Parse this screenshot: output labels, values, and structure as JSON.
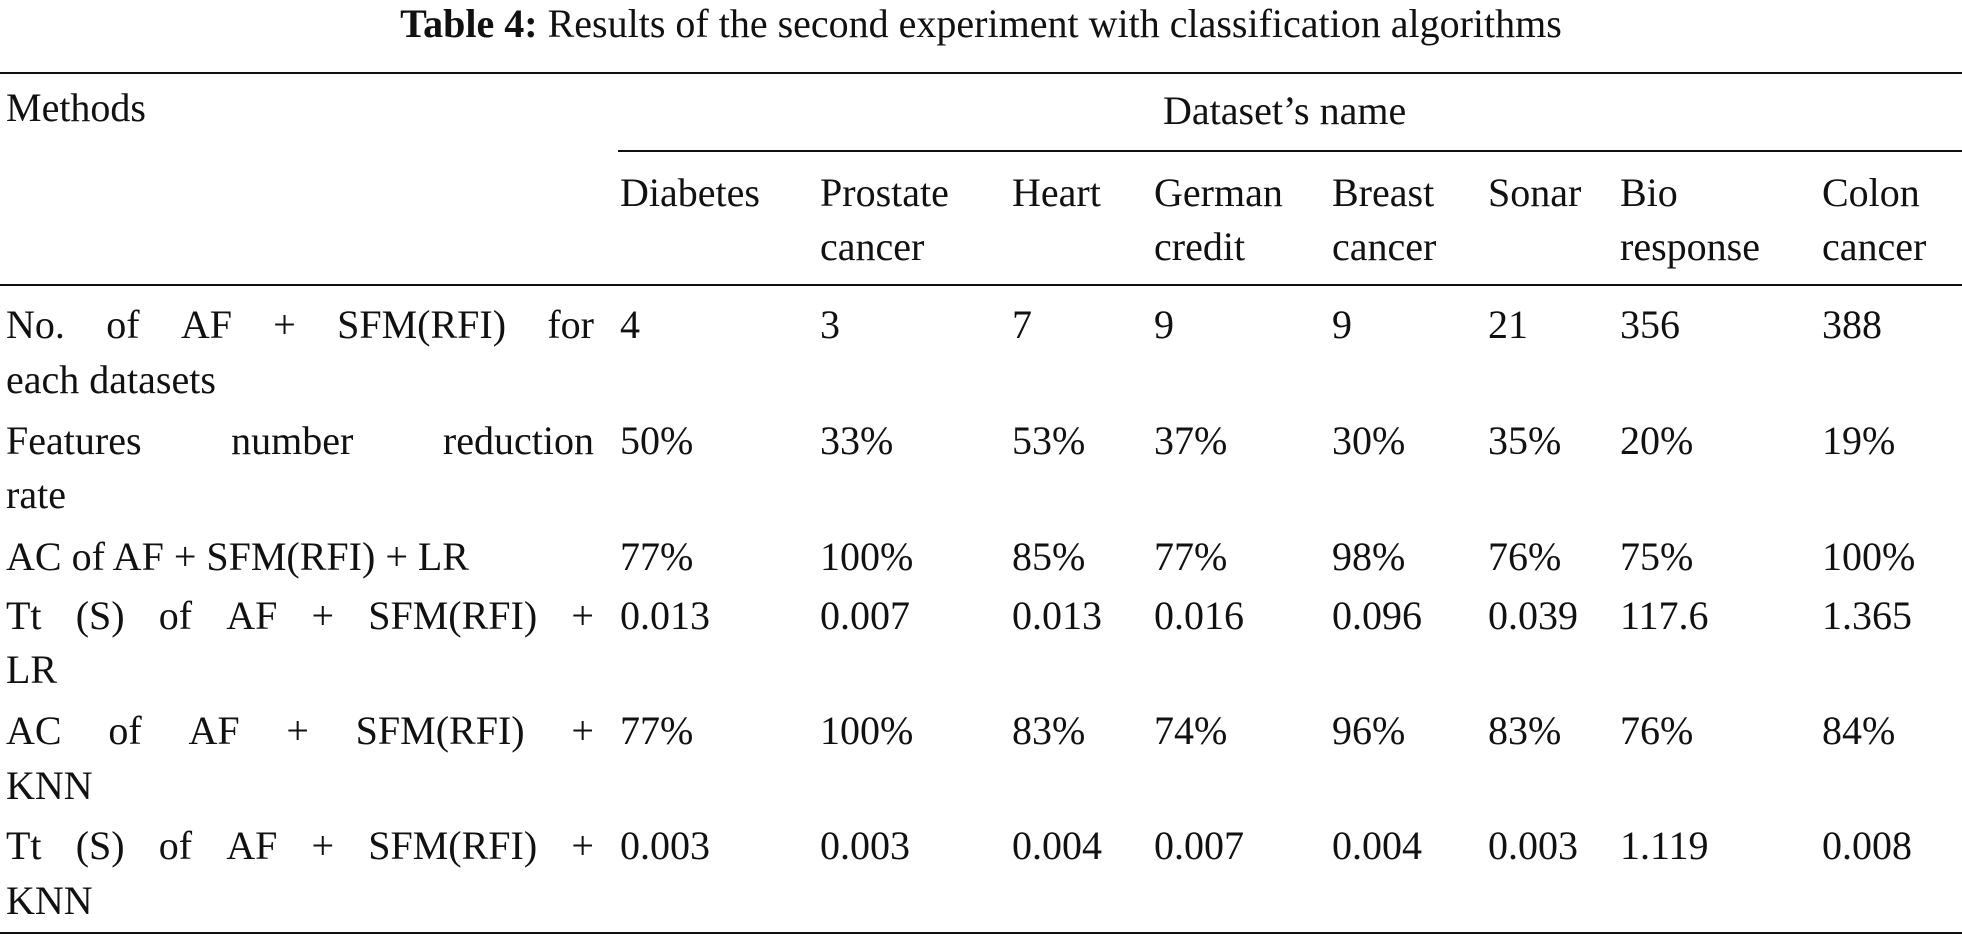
{
  "caption": {
    "label": "Table 4:",
    "text": "Results of the second experiment with classification algorithms"
  },
  "table": {
    "methods_header": "Methods",
    "group_header": "Dataset’s name",
    "datasets": [
      [
        "Diabetes"
      ],
      [
        "Prostate",
        "cancer"
      ],
      [
        "Heart"
      ],
      [
        "German",
        "credit"
      ],
      [
        "Breast",
        "cancer"
      ],
      [
        "Sonar"
      ],
      [
        "Bio",
        "response"
      ],
      [
        "Colon",
        "cancer"
      ]
    ],
    "rows": [
      {
        "method": [
          "No. of AF + SFM(RFI) for",
          "each datasets"
        ],
        "values": [
          "4",
          "3",
          "7",
          "9",
          "9",
          "21",
          "356",
          "388"
        ]
      },
      {
        "method": [
          "Features number reduction",
          "rate"
        ],
        "values": [
          "50%",
          "33%",
          "53%",
          "37%",
          "30%",
          "35%",
          "20%",
          "19%"
        ]
      },
      {
        "method": [
          "AC of AF + SFM(RFI) + LR"
        ],
        "values": [
          "77%",
          "100%",
          "85%",
          "77%",
          "98%",
          "76%",
          "75%",
          "100%"
        ]
      },
      {
        "method": [
          "Tt (S) of AF + SFM(RFI) +",
          "LR"
        ],
        "values": [
          "0.013",
          "0.007",
          "0.013",
          "0.016",
          "0.096",
          "0.039",
          "117.6",
          "1.365"
        ]
      },
      {
        "method": [
          "AC of AF + SFM(RFI) +",
          "KNN"
        ],
        "values": [
          "77%",
          "100%",
          "83%",
          "74%",
          "96%",
          "83%",
          "76%",
          "84%"
        ]
      },
      {
        "method": [
          "Tt (S) of AF + SFM(RFI) +",
          "KNN"
        ],
        "values": [
          "0.003",
          "0.003",
          "0.004",
          "0.007",
          "0.004",
          "0.003",
          "1.119",
          "0.008"
        ]
      }
    ]
  }
}
